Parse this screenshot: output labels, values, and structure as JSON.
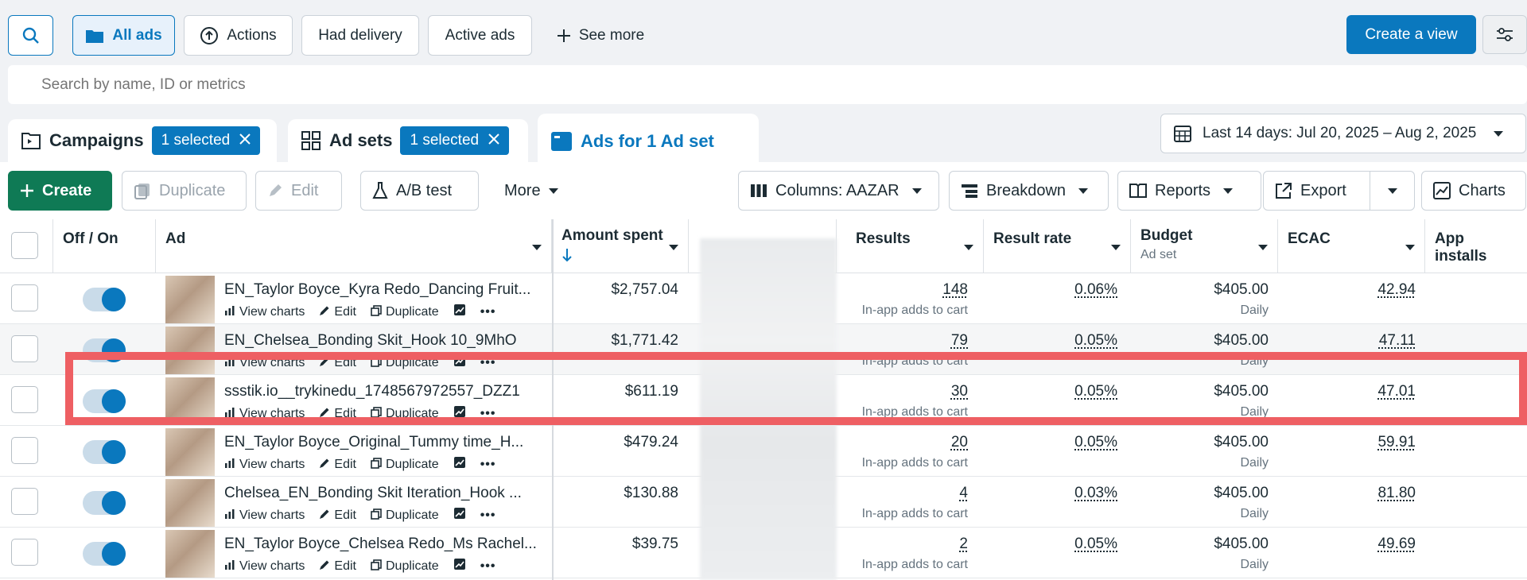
{
  "toolbar": {
    "all_ads": "All ads",
    "actions": "Actions",
    "had_delivery": "Had delivery",
    "active_ads": "Active ads",
    "see_more": "See more",
    "create_view": "Create a view"
  },
  "search": {
    "placeholder": "Search by name, ID or metrics"
  },
  "tabs": {
    "campaigns": {
      "label": "Campaigns",
      "selected": "1 selected"
    },
    "adsets": {
      "label": "Ad sets",
      "selected": "1 selected"
    },
    "ads": {
      "label": "Ads for 1 Ad set"
    }
  },
  "date_range": "Last 14 days: Jul 20, 2025 – Aug 2, 2025",
  "actions_bar": {
    "create": "Create",
    "duplicate": "Duplicate",
    "edit": "Edit",
    "ab_test": "A/B test",
    "more": "More",
    "columns": "Columns: AAZAR",
    "breakdown": "Breakdown",
    "reports": "Reports",
    "export": "Export",
    "charts": "Charts"
  },
  "columns": {
    "off_on": "Off / On",
    "ad": "Ad",
    "amount_spent": "Amount spent",
    "results": "Results",
    "result_rate": "Result rate",
    "budget": "Budget",
    "budget_sub": "Ad set",
    "ecac": "ECAC",
    "app_installs": "App installs"
  },
  "row_actions": {
    "view_charts": "View charts",
    "edit": "Edit",
    "duplicate": "Duplicate"
  },
  "rows": [
    {
      "name": "EN_Taylor Boyce_Kyra Redo_Dancing Fruit...",
      "amount": "$2,757.04",
      "results": "148",
      "results_sub": "In-app adds to cart",
      "rate": "0.06%",
      "budget": "$405.00",
      "budget_sub": "Daily",
      "ecac": "42.94"
    },
    {
      "name": "EN_Chelsea_Bonding Skit_Hook 10_9MhO",
      "amount": "$1,771.42",
      "results": "79",
      "results_sub": "In-app adds to cart",
      "rate": "0.05%",
      "budget": "$405.00",
      "budget_sub": "Daily",
      "ecac": "47.11"
    },
    {
      "name": "ssstik.io__trykinedu_1748567972557_DZZ1",
      "amount": "$611.19",
      "results": "30",
      "results_sub": "In-app adds to cart",
      "rate": "0.05%",
      "budget": "$405.00",
      "budget_sub": "Daily",
      "ecac": "47.01"
    },
    {
      "name": "EN_Taylor Boyce_Original_Tummy time_H...",
      "amount": "$479.24",
      "results": "20",
      "results_sub": "In-app adds to cart",
      "rate": "0.05%",
      "budget": "$405.00",
      "budget_sub": "Daily",
      "ecac": "59.91"
    },
    {
      "name": "Chelsea_EN_Bonding Skit Iteration_Hook ...",
      "amount": "$130.88",
      "results": "4",
      "results_sub": "In-app adds to cart",
      "rate": "0.03%",
      "budget": "$405.00",
      "budget_sub": "Daily",
      "ecac": "81.80"
    },
    {
      "name": "EN_Taylor Boyce_Chelsea Redo_Ms Rachel...",
      "amount": "$39.75",
      "results": "2",
      "results_sub": "In-app adds to cart",
      "rate": "0.05%",
      "budget": "$405.00",
      "budget_sub": "Daily",
      "ecac": "49.69"
    }
  ],
  "colors": {
    "primary": "#0a78be",
    "create_green": "#0f7a55",
    "highlight": "#ee5f63"
  }
}
